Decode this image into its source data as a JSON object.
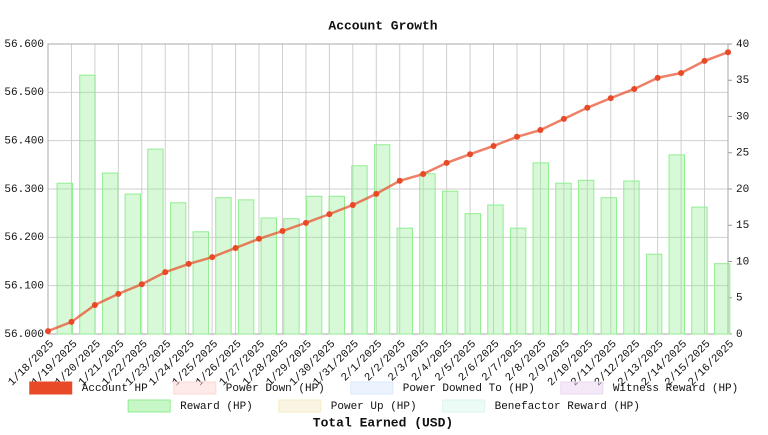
{
  "chart_data": {
    "type": "combo",
    "title": "Account Growth",
    "x_label": "Total Earned (USD)",
    "categories": [
      "1/18/2025",
      "1/19/2025",
      "1/20/2025",
      "1/21/2025",
      "1/22/2025",
      "1/23/2025",
      "1/24/2025",
      "1/25/2025",
      "1/26/2025",
      "1/27/2025",
      "1/28/2025",
      "1/29/2025",
      "1/30/2025",
      "1/31/2025",
      "2/1/2025",
      "2/2/2025",
      "2/3/2025",
      "2/4/2025",
      "2/5/2025",
      "2/6/2025",
      "2/7/2025",
      "2/8/2025",
      "2/9/2025",
      "2/10/2025",
      "2/11/2025",
      "2/12/2025",
      "2/13/2025",
      "2/14/2025",
      "2/15/2025",
      "2/16/2025"
    ],
    "ylim": [
      56.0,
      56.6
    ],
    "yticks": [
      {
        "value": 56.0,
        "label": "56.000"
      },
      {
        "value": 56.1,
        "label": "56.100"
      },
      {
        "value": 56.2,
        "label": "56.200"
      },
      {
        "value": 56.3,
        "label": "56.300"
      },
      {
        "value": 56.4,
        "label": "56.400"
      },
      {
        "value": 56.5,
        "label": "56.500"
      },
      {
        "value": 56.6,
        "label": "56.600"
      }
    ],
    "y2lim": [
      0,
      40
    ],
    "y2ticks": [
      0,
      5,
      10,
      15,
      20,
      25,
      30,
      35,
      40
    ],
    "grid": true,
    "legend": "bottom",
    "series": [
      {
        "name": "Account HP",
        "type": "line",
        "axis": "y",
        "color": "#e84a27",
        "values": [
          56.006,
          56.025,
          56.06,
          56.083,
          56.103,
          56.128,
          56.145,
          56.159,
          56.178,
          56.197,
          56.213,
          56.23,
          56.248,
          56.267,
          56.29,
          56.317,
          56.331,
          56.354,
          56.372,
          56.389,
          56.408,
          56.422,
          56.445,
          56.468,
          56.488,
          56.507,
          56.53,
          56.54,
          56.565,
          56.583
        ]
      },
      {
        "name": "Power Down (HP)",
        "type": "bar",
        "axis": "y2",
        "color": "#ffd6d6",
        "values": [
          null,
          null,
          null,
          null,
          null,
          null,
          null,
          null,
          null,
          null,
          null,
          null,
          null,
          null,
          null,
          null,
          null,
          null,
          null,
          null,
          null,
          null,
          null,
          null,
          null,
          null,
          null,
          null,
          null,
          null
        ]
      },
      {
        "name": "Power Downed To (HP)",
        "type": "bar",
        "axis": "y2",
        "color": "#dbe6ff",
        "values": [
          null,
          null,
          null,
          null,
          null,
          null,
          null,
          null,
          null,
          null,
          null,
          null,
          null,
          null,
          null,
          null,
          null,
          null,
          null,
          null,
          null,
          null,
          null,
          null,
          null,
          null,
          null,
          null,
          null,
          null
        ]
      },
      {
        "name": "Witness Reward (HP)",
        "type": "bar",
        "axis": "y2",
        "color": "#ead6f0",
        "values": [
          null,
          null,
          null,
          null,
          null,
          null,
          null,
          null,
          null,
          null,
          null,
          null,
          null,
          null,
          null,
          null,
          null,
          null,
          null,
          null,
          null,
          null,
          null,
          null,
          null,
          null,
          null,
          null,
          null,
          null
        ]
      },
      {
        "name": "Reward (HP)",
        "type": "bar",
        "axis": "y2",
        "color": "#90ee90",
        "values": [
          20.8,
          35.7,
          22.2,
          19.3,
          25.5,
          18.1,
          14.1,
          18.8,
          18.5,
          16.0,
          15.9,
          19.0,
          19.0,
          23.2,
          26.1,
          14.6,
          22.1,
          19.7,
          16.6,
          17.8,
          14.6,
          23.6,
          20.8,
          21.2,
          18.8,
          21.1,
          11.0,
          24.7,
          17.5,
          9.7
        ]
      },
      {
        "name": "Power Up (HP)",
        "type": "bar",
        "axis": "y2",
        "color": "#f5ecc8",
        "values": [
          null,
          null,
          null,
          null,
          null,
          null,
          null,
          null,
          null,
          null,
          null,
          null,
          null,
          null,
          null,
          null,
          null,
          null,
          null,
          null,
          null,
          null,
          null,
          null,
          null,
          null,
          null,
          null,
          null,
          null
        ]
      },
      {
        "name": "Benefactor Reward (HP)",
        "type": "bar",
        "axis": "y2",
        "color": "#d9f7ee",
        "values": [
          null,
          null,
          null,
          null,
          null,
          null,
          null,
          null,
          null,
          null,
          null,
          null,
          null,
          null,
          null,
          null,
          null,
          null,
          null,
          null,
          null,
          null,
          null,
          null,
          null,
          null,
          null,
          null,
          null,
          null
        ]
      }
    ]
  }
}
